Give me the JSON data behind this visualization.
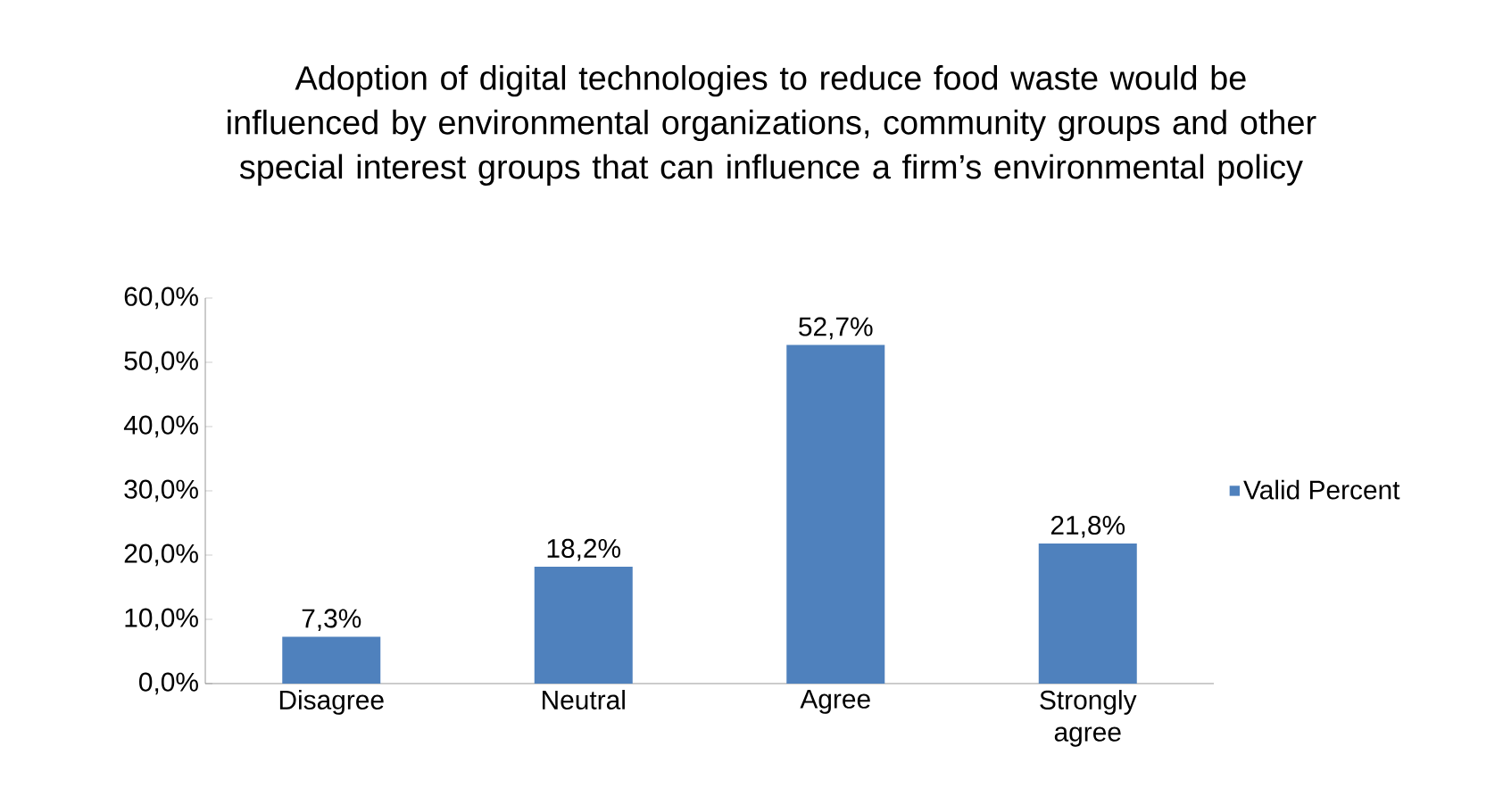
{
  "chart_data": {
    "type": "bar",
    "title": "Adoption of digital technologies to reduce food waste would be influenced by environmental organizations, community groups and other special interest groups that can influence a firm’s environmental policy",
    "categories": [
      "Disagree",
      "Neutral",
      "Agree",
      "Strongly agree"
    ],
    "series": [
      {
        "name": "Valid Percent",
        "color": "#4f81bd",
        "values": [
          7.3,
          18.2,
          52.7,
          21.8
        ],
        "value_labels": [
          "7,3%",
          "18,2%",
          "52,7%",
          "21,8%"
        ]
      }
    ],
    "ylim": [
      0,
      60
    ],
    "yticks": [
      {
        "value": 0,
        "label": "0,0%"
      },
      {
        "value": 10,
        "label": "10,0%"
      },
      {
        "value": 20,
        "label": "20,0%"
      },
      {
        "value": 30,
        "label": "30,0%"
      },
      {
        "value": 40,
        "label": "40,0%"
      },
      {
        "value": 50,
        "label": "50,0%"
      },
      {
        "value": 60,
        "label": "60,0%"
      }
    ],
    "grid": false,
    "legend": "right"
  }
}
